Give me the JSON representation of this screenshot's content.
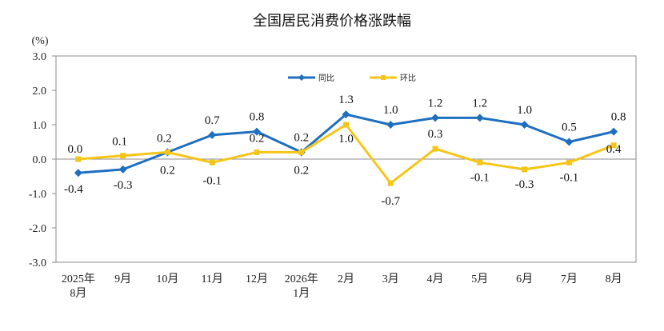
{
  "chart_data": {
    "type": "line",
    "title": "全国居民消费价格涨跌幅",
    "ylabel": "(%)",
    "ylim": [
      -3.0,
      3.0
    ],
    "yticks": [
      "3.0",
      "2.0",
      "1.0",
      "0.0",
      "-1.0",
      "-2.0",
      "-3.0"
    ],
    "ytick_values": [
      3.0,
      2.0,
      1.0,
      0.0,
      -1.0,
      -2.0,
      -3.0
    ],
    "categories": [
      [
        "2025年",
        "8月"
      ],
      [
        "9月"
      ],
      [
        "10月"
      ],
      [
        "11月"
      ],
      [
        "12月"
      ],
      [
        "2026年",
        "1月"
      ],
      [
        "2月"
      ],
      [
        "3月"
      ],
      [
        "4月"
      ],
      [
        "5月"
      ],
      [
        "6月"
      ],
      [
        "7月"
      ],
      [
        "8月"
      ]
    ],
    "grid": false,
    "legend_position": "top-right",
    "series": [
      {
        "name": "同比",
        "color": "#1f6fc0",
        "marker": "diamond",
        "values": [
          -0.4,
          -0.3,
          0.2,
          0.7,
          0.8,
          0.2,
          1.3,
          1.0,
          1.2,
          1.2,
          1.0,
          0.5,
          0.8
        ],
        "labels": [
          "-0.4",
          "-0.3",
          "0.2",
          "0.7",
          "0.8",
          "0.2",
          "1.3",
          "1.0",
          "1.2",
          "1.2",
          "1.0",
          "0.5",
          "0.8"
        ]
      },
      {
        "name": "环比",
        "color": "#f5c518",
        "marker": "square",
        "values": [
          0.0,
          0.1,
          0.2,
          -0.1,
          0.2,
          0.2,
          1.0,
          -0.7,
          0.3,
          -0.1,
          -0.3,
          -0.1,
          0.4
        ],
        "labels": [
          "0.0",
          "0.1",
          "0.2",
          "-0.1",
          "0.2",
          "0.2",
          "1.0",
          "-0.7",
          "0.3",
          "-0.1",
          "-0.3",
          "-0.1",
          "0.4"
        ]
      }
    ]
  }
}
